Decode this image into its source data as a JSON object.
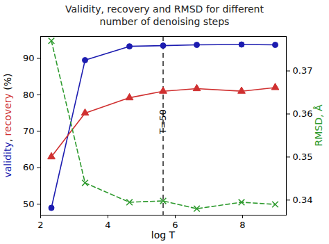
{
  "chart_data": {
    "type": "line",
    "title": "Validity, recovery and RMSD for different\nnumber of denoising steps",
    "x_label": "log T",
    "y_label": "validity, recovery (%)",
    "y2_label": "RMSD, Å",
    "x": [
      2.32,
      3.32,
      4.64,
      5.64,
      6.64,
      7.97,
      8.97
    ],
    "xlim": [
      2,
      9.3
    ],
    "xticks": [
      2,
      4,
      6,
      8
    ],
    "ylim": [
      47,
      96
    ],
    "yticks": [
      50,
      60,
      70,
      80,
      90
    ],
    "y2lim": [
      0.3365,
      0.378
    ],
    "y2ticks": [
      0.34,
      0.35,
      0.36,
      0.37
    ],
    "grid": false,
    "series": [
      {
        "name": "validity",
        "color": "#1c1cb0",
        "marker": "circle",
        "line_style": "solid",
        "values": [
          49,
          89.5,
          93.3,
          93.5,
          93.7,
          93.8,
          93.7
        ]
      },
      {
        "name": "recovery",
        "color": "#d03030",
        "marker": "triangle",
        "line_style": "solid",
        "values": [
          63,
          75,
          79.2,
          81,
          81.7,
          81,
          82
        ]
      },
      {
        "name": "RMSD",
        "color": "#2e9a2e",
        "marker": "x",
        "line_style": "dashed",
        "axis": "y2",
        "values": [
          0.377,
          0.344,
          0.3395,
          0.3398,
          0.338,
          0.3395,
          0.339
        ]
      }
    ],
    "annotations": [
      {
        "x": 5.64,
        "text": "T=50"
      }
    ]
  }
}
